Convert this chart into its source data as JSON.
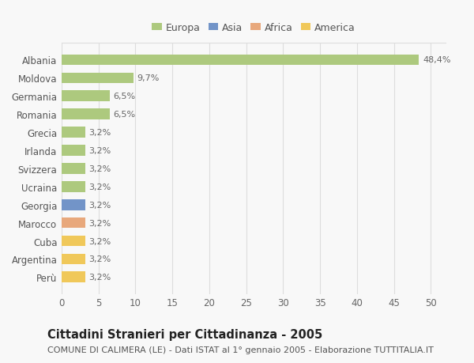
{
  "categories": [
    "Albania",
    "Moldova",
    "Germania",
    "Romania",
    "Grecia",
    "Irlanda",
    "Svizzera",
    "Ucraina",
    "Georgia",
    "Marocco",
    "Cuba",
    "Argentina",
    "Perù"
  ],
  "values": [
    48.4,
    9.7,
    6.5,
    6.5,
    3.2,
    3.2,
    3.2,
    3.2,
    3.2,
    3.2,
    3.2,
    3.2,
    3.2
  ],
  "labels": [
    "48,4%",
    "9,7%",
    "6,5%",
    "6,5%",
    "3,2%",
    "3,2%",
    "3,2%",
    "3,2%",
    "3,2%",
    "3,2%",
    "3,2%",
    "3,2%",
    "3,2%"
  ],
  "bar_colors": [
    "#adc97e",
    "#adc97e",
    "#adc97e",
    "#adc97e",
    "#adc97e",
    "#adc97e",
    "#adc97e",
    "#adc97e",
    "#7294c8",
    "#e8a87c",
    "#f0c85a",
    "#f0c85a",
    "#f0c85a"
  ],
  "continent_colors": {
    "Europa": "#adc97e",
    "Asia": "#7294c8",
    "Africa": "#e8a87c",
    "America": "#f0c85a"
  },
  "xlim": [
    0,
    52
  ],
  "xticks": [
    0,
    5,
    10,
    15,
    20,
    25,
    30,
    35,
    40,
    45,
    50
  ],
  "title": "Cittadini Stranieri per Cittadinanza - 2005",
  "subtitle": "COMUNE DI CALIMERA (LE) - Dati ISTAT al 1° gennaio 2005 - Elaborazione TUTTITALIA.IT",
  "background_color": "#f8f8f8",
  "grid_color": "#dddddd",
  "bar_height": 0.6,
  "label_fontsize": 8,
  "title_fontsize": 10.5,
  "subtitle_fontsize": 8,
  "tick_fontsize": 8.5,
  "legend_fontsize": 9
}
